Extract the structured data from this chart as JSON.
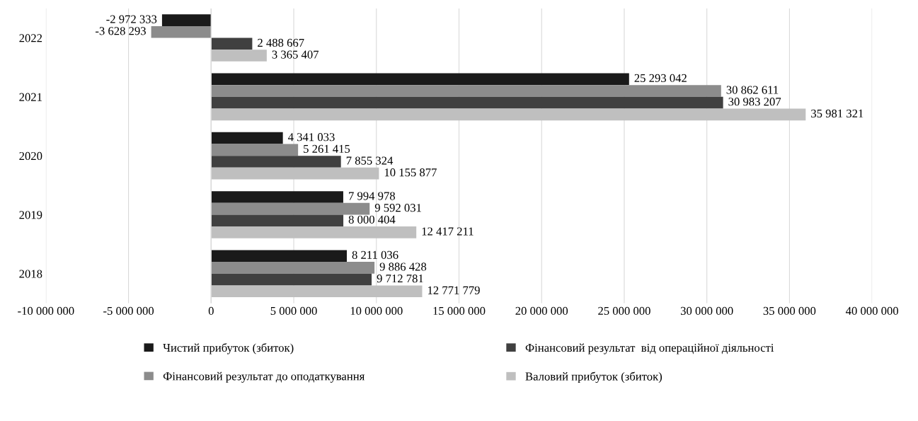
{
  "chart_data": {
    "type": "bar",
    "orientation": "horizontal",
    "categories": [
      "2022",
      "2021",
      "2020",
      "2019",
      "2018"
    ],
    "series": [
      {
        "name": "Чистий прибуток (збиток)",
        "color": "#1a1a1a",
        "values": [
          -2972333,
          25293042,
          4341033,
          7994978,
          8211036
        ],
        "value_labels": [
          "-2 972 333",
          "25 293 042",
          "4 341 033",
          "7 994 978",
          "8 211 036"
        ]
      },
      {
        "name": "Фінансовий результат до оподаткування",
        "color": "#8c8c8c",
        "values": [
          -3628293,
          30862611,
          5261415,
          9592031,
          9886428
        ],
        "value_labels": [
          "-3 628 293",
          "30 862 611",
          "5 261 415",
          "9 592 031",
          "9 886 428"
        ]
      },
      {
        "name": "Фінансовий результат  від операційної діяльності",
        "color": "#404040",
        "values": [
          2488667,
          30983207,
          7855324,
          8000404,
          9712781
        ],
        "value_labels": [
          "2 488 667",
          "30 983 207",
          "7 855 324",
          "8 000 404",
          "9 712 781"
        ]
      },
      {
        "name": "Валовий прибуток (збиток)",
        "color": "#bfbfbf",
        "values": [
          3365407,
          35981321,
          10155877,
          12417211,
          12771779
        ],
        "value_labels": [
          "3 365 407",
          "35 981 321",
          "10 155 877",
          "12 417 211",
          "12 771 779"
        ]
      }
    ],
    "xlim": [
      -10000000,
      40000000
    ],
    "xticks": [
      {
        "value": -10000000,
        "label": "-10 000 000"
      },
      {
        "value": -5000000,
        "label": "-5 000 000"
      },
      0,
      {
        "value": 5000000,
        "label": "5 000 000"
      },
      {
        "value": 10000000,
        "label": "10 000 000"
      },
      {
        "value": 15000000,
        "label": "15 000 000"
      },
      {
        "value": 20000000,
        "label": "20 000 000"
      },
      {
        "value": 25000000,
        "label": "25 000 000"
      },
      {
        "value": 30000000,
        "label": "30 000 000"
      },
      {
        "value": 35000000,
        "label": "35 000 000"
      },
      {
        "value": 40000000,
        "label": "40 000 000"
      }
    ],
    "grid": "x",
    "legend": "bottom"
  }
}
